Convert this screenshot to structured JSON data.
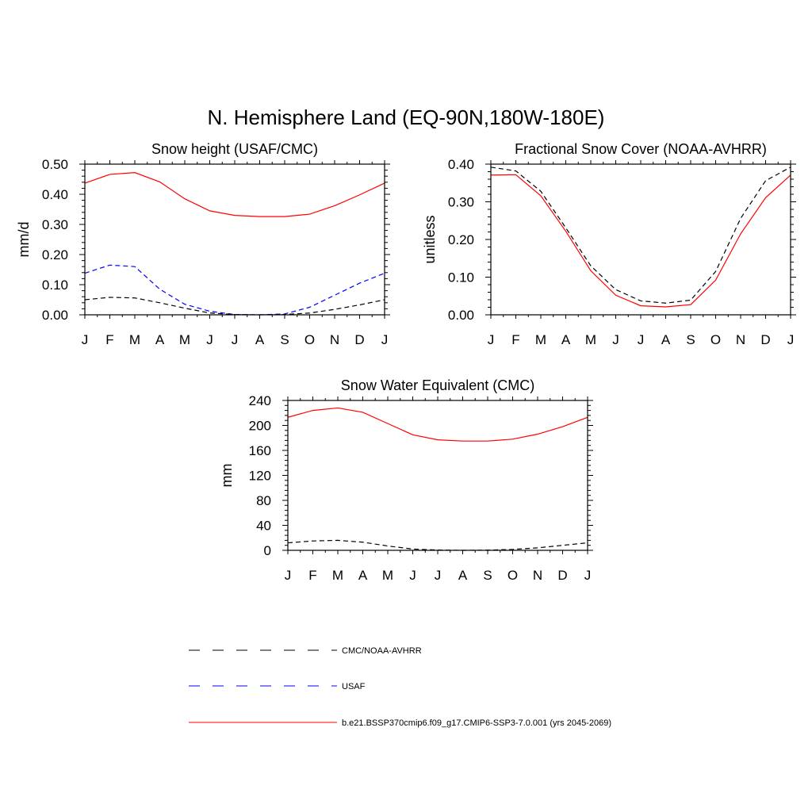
{
  "figure": {
    "title": "N. Hemisphere Land (EQ-90N,180W-180E)"
  },
  "legend": [
    {
      "label": "CMC/NOAA-AVHRR",
      "color": "#000000",
      "dash": "dashed"
    },
    {
      "label": "USAF",
      "color": "#0000ff",
      "dash": "dashed"
    },
    {
      "label": "b.e21.BSSP370cmip6.f09_g17.CMIP6-SSP3-7.0.001 (yrs 2045-2069)",
      "color": "#ff0000",
      "dash": "solid"
    }
  ],
  "chart_data": [
    {
      "type": "line",
      "title": "Snow height (USAF/CMC)",
      "xlabel": "",
      "ylabel": "mm/d",
      "categories": [
        "J",
        "F",
        "M",
        "A",
        "M",
        "J",
        "J",
        "A",
        "S",
        "O",
        "N",
        "D",
        "J"
      ],
      "ylim": [
        0,
        0.5
      ],
      "yticks": [
        "0.00",
        "0.10",
        "0.20",
        "0.30",
        "0.40",
        "0.50"
      ],
      "grid": false,
      "series": [
        {
          "name": "b.e21.BSSP370cmip6.f09_g17.CMIP6-SSP3-7.0.001 (yrs 2045-2069)",
          "color": "#ff0000",
          "dash": "solid",
          "values": [
            0.437,
            0.466,
            0.472,
            0.441,
            0.385,
            0.345,
            0.33,
            0.326,
            0.326,
            0.334,
            0.362,
            0.398,
            0.437
          ]
        },
        {
          "name": "USAF",
          "color": "#0000ff",
          "dash": "dashed",
          "values": [
            0.138,
            0.165,
            0.16,
            0.085,
            0.035,
            0.012,
            0.001,
            0.0,
            0.003,
            0.025,
            0.065,
            0.105,
            0.138
          ]
        },
        {
          "name": "CMC/NOAA-AVHRR",
          "color": "#000000",
          "dash": "dashed",
          "values": [
            0.05,
            0.058,
            0.056,
            0.04,
            0.022,
            0.006,
            0.001,
            0.0,
            0.001,
            0.006,
            0.018,
            0.033,
            0.05
          ]
        }
      ]
    },
    {
      "type": "line",
      "title": "Fractional Snow Cover (NOAA-AVHRR)",
      "xlabel": "",
      "ylabel": "unitless",
      "categories": [
        "J",
        "F",
        "M",
        "A",
        "M",
        "J",
        "J",
        "A",
        "S",
        "O",
        "N",
        "D",
        "J"
      ],
      "ylim": [
        0,
        0.4
      ],
      "yticks": [
        "0.00",
        "0.10",
        "0.20",
        "0.30",
        "0.40"
      ],
      "grid": false,
      "series": [
        {
          "name": "b.e21.BSSP370cmip6.f09_g17.CMIP6-SSP3-7.0.001 (yrs 2045-2069)",
          "color": "#ff0000",
          "dash": "solid",
          "values": [
            0.371,
            0.372,
            0.316,
            0.222,
            0.117,
            0.052,
            0.024,
            0.021,
            0.027,
            0.092,
            0.215,
            0.311,
            0.371
          ]
        },
        {
          "name": "CMC/NOAA-AVHRR",
          "color": "#000000",
          "dash": "dashed",
          "values": [
            0.392,
            0.382,
            0.328,
            0.231,
            0.13,
            0.067,
            0.037,
            0.031,
            0.039,
            0.115,
            0.256,
            0.356,
            0.392
          ]
        }
      ]
    },
    {
      "type": "line",
      "title": "Snow Water Equivalent (CMC)",
      "xlabel": "",
      "ylabel": "mm",
      "categories": [
        "J",
        "F",
        "M",
        "A",
        "M",
        "J",
        "J",
        "A",
        "S",
        "O",
        "N",
        "D",
        "J"
      ],
      "ylim": [
        0,
        240
      ],
      "yticks": [
        "0",
        "40",
        "80",
        "120",
        "160",
        "200",
        "240"
      ],
      "grid": false,
      "series": [
        {
          "name": "b.e21.BSSP370cmip6.f09_g17.CMIP6-SSP3-7.0.001 (yrs 2045-2069)",
          "color": "#ff0000",
          "dash": "solid",
          "values": [
            213,
            224,
            228,
            221,
            203,
            185,
            177,
            175,
            175,
            178,
            186,
            198,
            213
          ]
        },
        {
          "name": "CMC/NOAA-AVHRR",
          "color": "#000000",
          "dash": "dashed",
          "values": [
            12,
            15,
            16,
            13,
            7,
            2,
            0.5,
            0,
            0.3,
            1.5,
            4,
            8,
            12
          ]
        }
      ]
    }
  ]
}
